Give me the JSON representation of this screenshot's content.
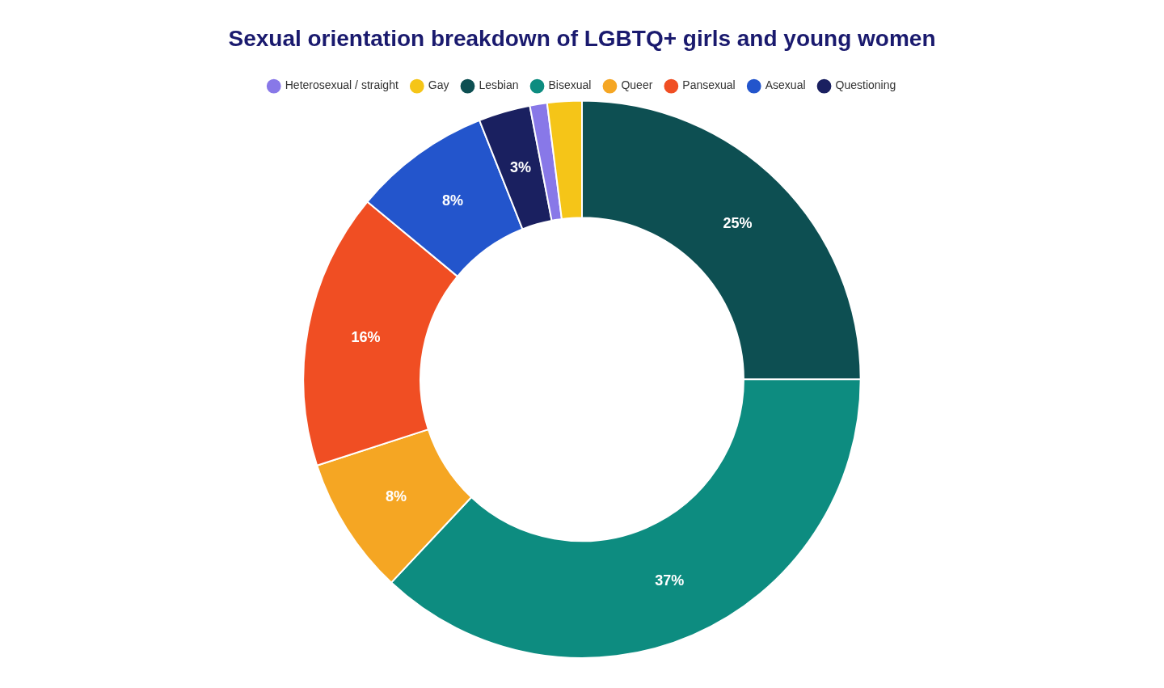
{
  "chart_data": {
    "type": "doughnut",
    "title": "Sexual orientation breakdown of LGBTQ+ girls and young women",
    "title_color": "#1a1a6e",
    "categories": [
      "Lesbian",
      "Bisexual",
      "Queer",
      "Pansexual",
      "Asexual",
      "Questioning",
      "Heterosexual / straight",
      "Gay"
    ],
    "values": [
      25,
      37,
      8,
      16,
      8,
      3,
      1,
      2
    ],
    "value_labels": [
      "25%",
      "37%",
      "8%",
      "16%",
      "8%",
      "3%",
      null,
      null
    ],
    "colors": [
      "#0d4f52",
      "#0d8c80",
      "#f5a623",
      "#f04e23",
      "#2355cc",
      "#1a2060",
      "#8878e8",
      "#f5c518"
    ],
    "data_labels": true,
    "label_color": "#ffffff",
    "legend": "top",
    "legend_order": [
      "Heterosexual / straight",
      "Gay",
      "Lesbian",
      "Bisexual",
      "Queer",
      "Pansexual",
      "Asexual",
      "Questioning"
    ]
  }
}
